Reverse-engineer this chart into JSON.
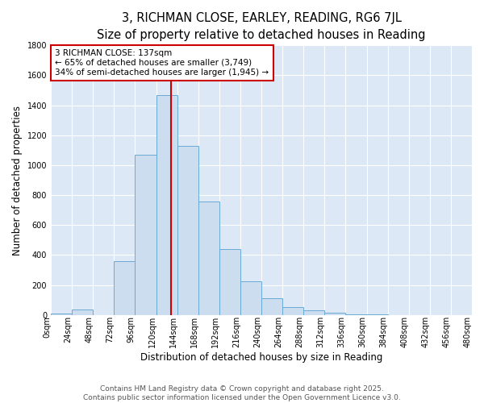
{
  "title": "3, RICHMAN CLOSE, EARLEY, READING, RG6 7JL",
  "subtitle": "Size of property relative to detached houses in Reading",
  "xlabel": "Distribution of detached houses by size in Reading",
  "ylabel": "Number of detached properties",
  "bar_values": [
    10,
    35,
    0,
    360,
    1070,
    1470,
    1130,
    760,
    440,
    225,
    110,
    55,
    30,
    15,
    5,
    2,
    0,
    0,
    0,
    0
  ],
  "bin_edges": [
    0,
    24,
    48,
    72,
    96,
    120,
    144,
    168,
    192,
    216,
    240,
    264,
    288,
    312,
    336,
    360,
    384,
    408,
    432,
    456,
    480
  ],
  "bar_color": "#ccddf0",
  "bar_edge_color": "#6aaad4",
  "vline_x": 137,
  "vline_color": "#cc0000",
  "annotation_line1": "3 RICHMAN CLOSE: 137sqm",
  "annotation_line2": "← 65% of detached houses are smaller (3,749)",
  "annotation_line3": "34% of semi-detached houses are larger (1,945) →",
  "annotation_box_color": "white",
  "annotation_box_edge": "#cc0000",
  "ylim": [
    0,
    1800
  ],
  "yticks": [
    0,
    200,
    400,
    600,
    800,
    1000,
    1200,
    1400,
    1600,
    1800
  ],
  "bg_color": "#dce8f5",
  "grid_color": "#c0d0e0",
  "footer_line1": "Contains HM Land Registry data © Crown copyright and database right 2025.",
  "footer_line2": "Contains public sector information licensed under the Open Government Licence v3.0.",
  "title_fontsize": 10.5,
  "subtitle_fontsize": 9,
  "axis_label_fontsize": 8.5,
  "tick_fontsize": 7,
  "annotation_fontsize": 7.5,
  "footer_fontsize": 6.5
}
